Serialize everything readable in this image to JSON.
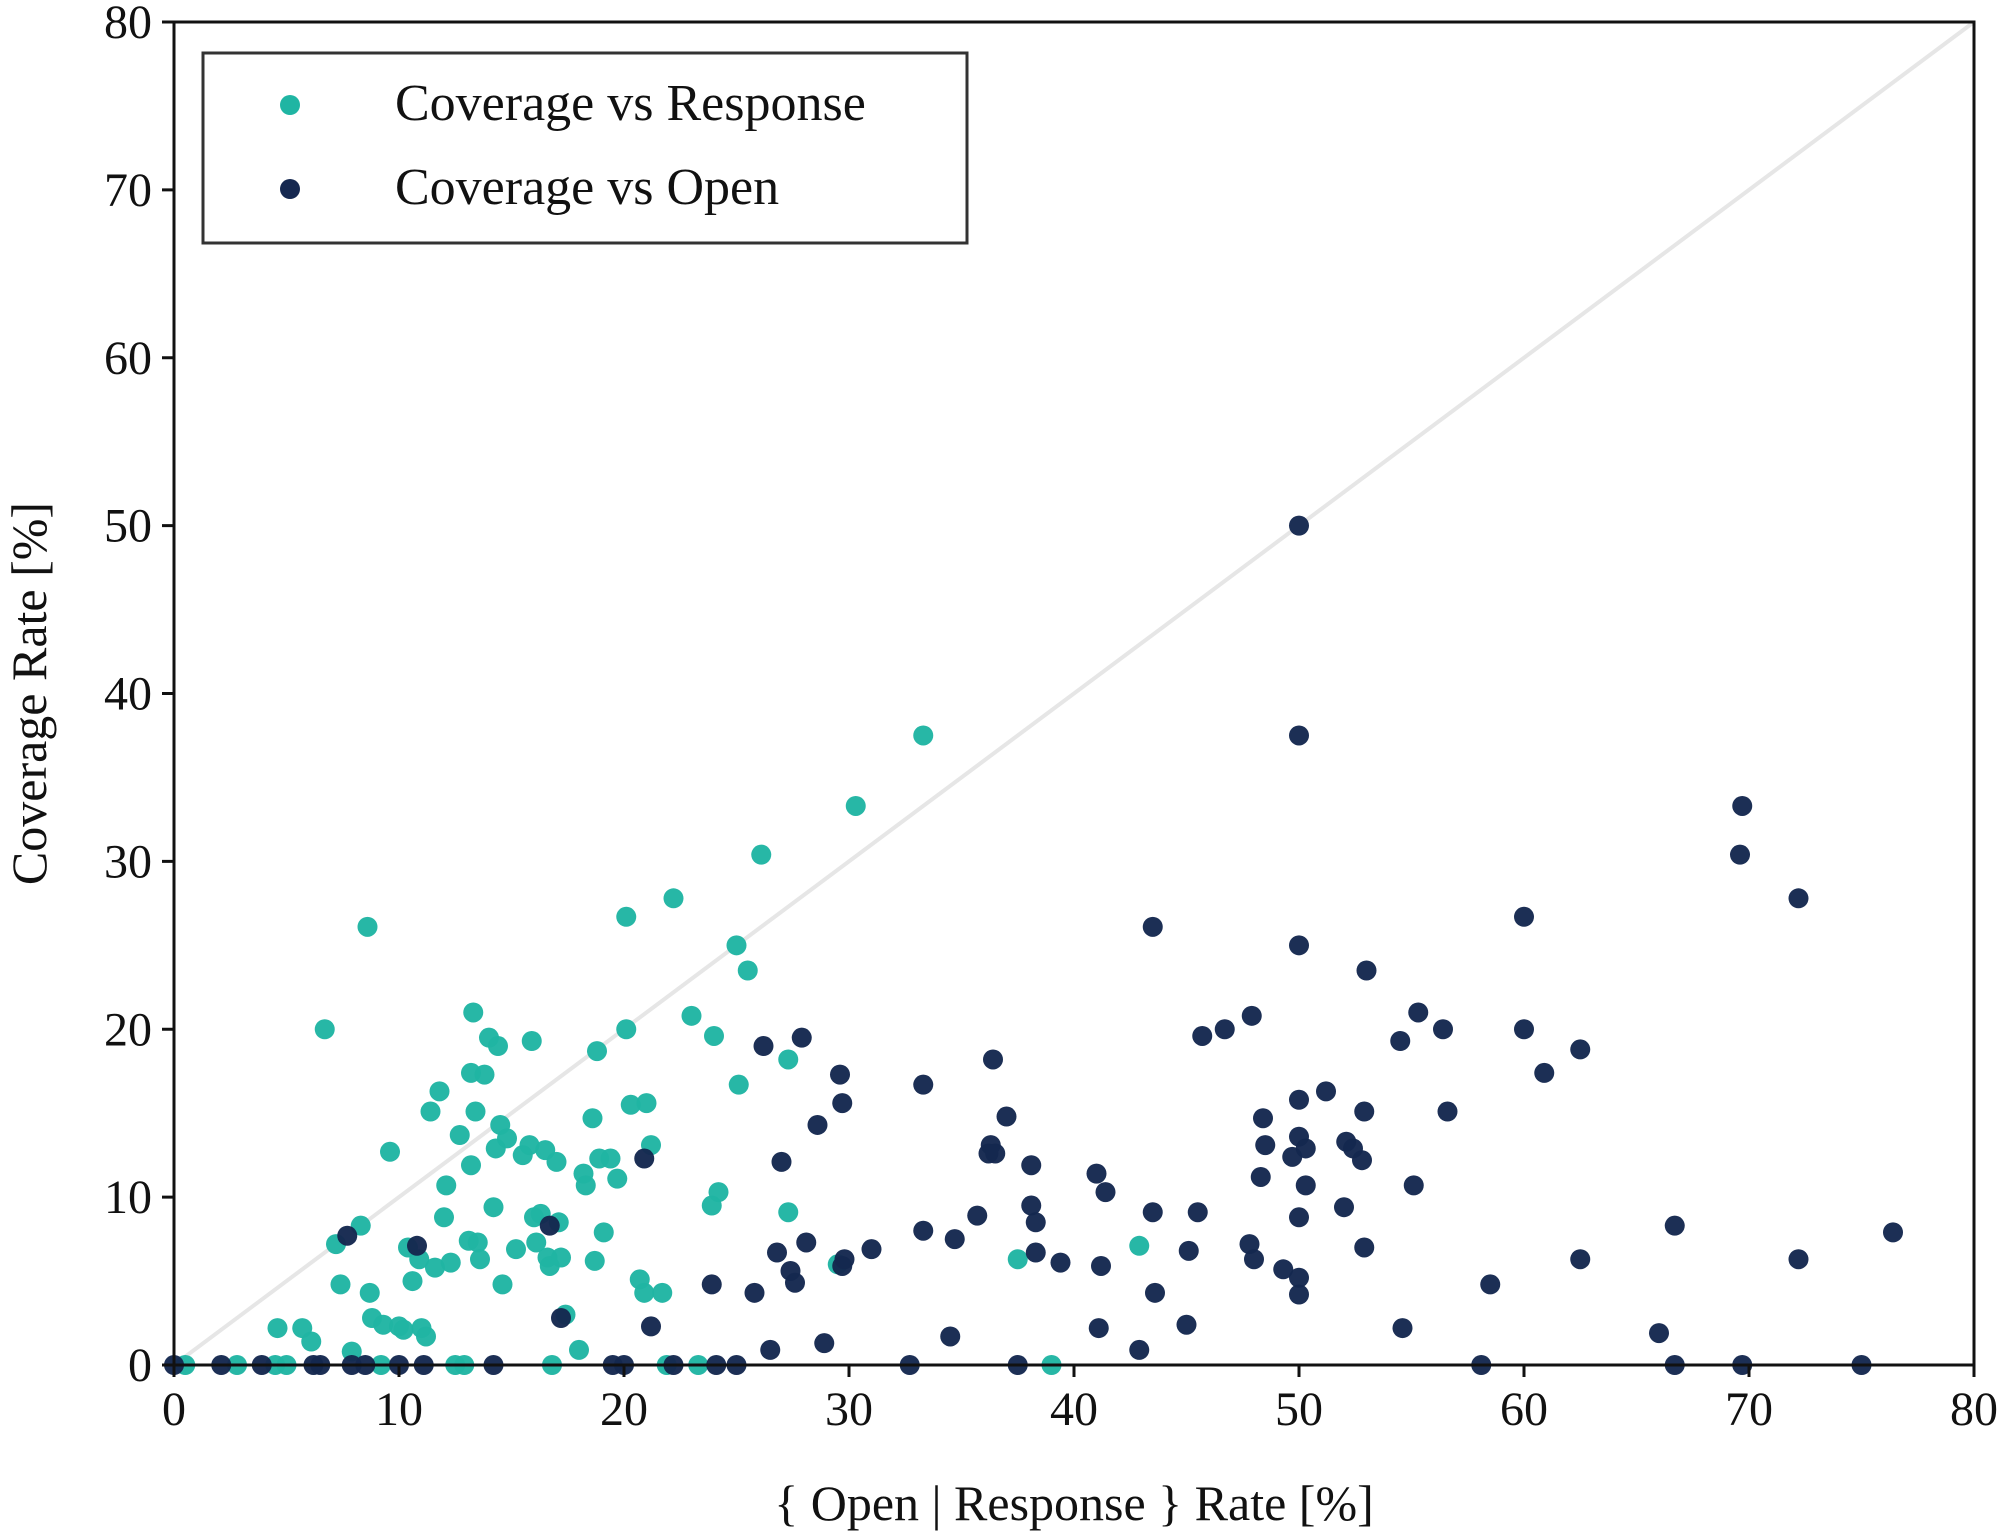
{
  "chart_data": {
    "type": "scatter",
    "title": "",
    "xlabel": "{ Open | Response } Rate [%]",
    "ylabel": "Coverage Rate [%]",
    "xlim": [
      0,
      80
    ],
    "ylim": [
      0,
      80
    ],
    "xticks": [
      "0",
      "10",
      "20",
      "30",
      "40",
      "50",
      "60",
      "70",
      "80"
    ],
    "yticks": [
      "0",
      "10",
      "20",
      "30",
      "40",
      "50",
      "60",
      "70",
      "80"
    ],
    "grid": false,
    "legend_position": "top-left",
    "reference_line": {
      "from": [
        0,
        0
      ],
      "to": [
        80,
        80
      ],
      "color": "#e6e6e6"
    },
    "series": [
      {
        "name": "Coverage vs Response",
        "color": "#20b5a3",
        "points": [
          [
            0.5,
            0
          ],
          [
            2.8,
            0
          ],
          [
            4.5,
            0
          ],
          [
            5.0,
            0
          ],
          [
            4.6,
            2.2
          ],
          [
            5.7,
            2.2
          ],
          [
            6.1,
            1.4
          ],
          [
            6.7,
            20.0
          ],
          [
            7.2,
            7.2
          ],
          [
            7.4,
            4.8
          ],
          [
            7.9,
            0.8
          ],
          [
            8.3,
            8.3
          ],
          [
            8.6,
            26.1
          ],
          [
            8.7,
            4.3
          ],
          [
            8.8,
            2.8
          ],
          [
            9.2,
            0
          ],
          [
            9.3,
            2.4
          ],
          [
            9.6,
            12.7
          ],
          [
            10.0,
            2.3
          ],
          [
            10.2,
            2.1
          ],
          [
            10.4,
            7.0
          ],
          [
            10.6,
            5.0
          ],
          [
            10.9,
            6.3
          ],
          [
            11.0,
            2.2
          ],
          [
            11.2,
            1.7
          ],
          [
            11.4,
            15.1
          ],
          [
            11.6,
            5.8
          ],
          [
            11.8,
            16.3
          ],
          [
            12.0,
            8.8
          ],
          [
            12.1,
            10.7
          ],
          [
            12.3,
            6.1
          ],
          [
            12.5,
            0
          ],
          [
            12.7,
            13.7
          ],
          [
            12.9,
            0
          ],
          [
            13.1,
            7.4
          ],
          [
            13.2,
            11.9
          ],
          [
            13.2,
            17.4
          ],
          [
            13.3,
            21.0
          ],
          [
            13.4,
            15.1
          ],
          [
            13.5,
            7.3
          ],
          [
            13.6,
            6.3
          ],
          [
            13.8,
            17.3
          ],
          [
            14.0,
            19.5
          ],
          [
            14.2,
            9.4
          ],
          [
            14.3,
            12.9
          ],
          [
            14.4,
            19.0
          ],
          [
            14.5,
            14.3
          ],
          [
            14.6,
            4.8
          ],
          [
            14.8,
            13.5
          ],
          [
            15.2,
            6.9
          ],
          [
            15.5,
            12.5
          ],
          [
            15.8,
            13.1
          ],
          [
            15.9,
            19.3
          ],
          [
            16.0,
            8.8
          ],
          [
            16.1,
            7.3
          ],
          [
            16.3,
            9.0
          ],
          [
            16.5,
            12.8
          ],
          [
            16.6,
            6.4
          ],
          [
            16.7,
            5.9
          ],
          [
            16.8,
            0
          ],
          [
            17.0,
            12.1
          ],
          [
            17.1,
            8.5
          ],
          [
            17.2,
            6.4
          ],
          [
            17.4,
            3.0
          ],
          [
            18.0,
            0.9
          ],
          [
            18.2,
            11.4
          ],
          [
            18.3,
            10.7
          ],
          [
            18.6,
            14.7
          ],
          [
            18.7,
            6.2
          ],
          [
            18.8,
            18.7
          ],
          [
            18.9,
            12.3
          ],
          [
            19.1,
            7.9
          ],
          [
            19.4,
            12.3
          ],
          [
            19.7,
            11.1
          ],
          [
            20.1,
            20.0
          ],
          [
            20.1,
            26.7
          ],
          [
            20.3,
            15.5
          ],
          [
            20.7,
            5.1
          ],
          [
            20.9,
            4.3
          ],
          [
            21.0,
            15.6
          ],
          [
            21.2,
            13.1
          ],
          [
            21.7,
            4.3
          ],
          [
            21.9,
            0
          ],
          [
            22.2,
            27.8
          ],
          [
            23.0,
            20.8
          ],
          [
            23.3,
            0
          ],
          [
            23.9,
            9.5
          ],
          [
            24.0,
            19.6
          ],
          [
            24.2,
            10.3
          ],
          [
            25.0,
            25.0
          ],
          [
            25.1,
            16.7
          ],
          [
            25.5,
            23.5
          ],
          [
            26.1,
            30.4
          ],
          [
            27.3,
            18.2
          ],
          [
            27.3,
            9.1
          ],
          [
            29.5,
            6.0
          ],
          [
            30.3,
            33.3
          ],
          [
            33.3,
            37.5
          ],
          [
            37.5,
            6.3
          ],
          [
            39.0,
            0
          ],
          [
            42.9,
            7.1
          ]
        ]
      },
      {
        "name": "Coverage vs Open",
        "color": "#152850",
        "points": [
          [
            0,
            0
          ],
          [
            2.1,
            0
          ],
          [
            3.9,
            0
          ],
          [
            6.2,
            0
          ],
          [
            6.5,
            0
          ],
          [
            7.7,
            7.7
          ],
          [
            7.9,
            0
          ],
          [
            8.5,
            0
          ],
          [
            10.0,
            0
          ],
          [
            10.8,
            7.1
          ],
          [
            11.1,
            0
          ],
          [
            14.2,
            0
          ],
          [
            16.7,
            8.3
          ],
          [
            17.2,
            2.8
          ],
          [
            19.5,
            0
          ],
          [
            20.0,
            0
          ],
          [
            20.9,
            12.3
          ],
          [
            21.2,
            2.3
          ],
          [
            22.2,
            0
          ],
          [
            23.9,
            4.8
          ],
          [
            24.1,
            0
          ],
          [
            25.0,
            0
          ],
          [
            25.8,
            4.3
          ],
          [
            26.2,
            19.0
          ],
          [
            26.5,
            0.9
          ],
          [
            26.8,
            6.7
          ],
          [
            27.0,
            12.1
          ],
          [
            27.4,
            5.6
          ],
          [
            27.6,
            4.9
          ],
          [
            27.9,
            19.5
          ],
          [
            28.1,
            7.3
          ],
          [
            28.6,
            14.3
          ],
          [
            28.9,
            1.3
          ],
          [
            29.6,
            17.3
          ],
          [
            29.7,
            15.6
          ],
          [
            29.7,
            5.9
          ],
          [
            29.8,
            6.3
          ],
          [
            31.0,
            6.9
          ],
          [
            32.7,
            0
          ],
          [
            33.3,
            16.7
          ],
          [
            33.3,
            8.0
          ],
          [
            34.5,
            1.7
          ],
          [
            34.7,
            7.5
          ],
          [
            35.7,
            8.9
          ],
          [
            36.2,
            12.6
          ],
          [
            36.3,
            13.1
          ],
          [
            36.4,
            18.2
          ],
          [
            36.5,
            12.6
          ],
          [
            37.0,
            14.8
          ],
          [
            37.5,
            0
          ],
          [
            38.1,
            11.9
          ],
          [
            38.1,
            9.5
          ],
          [
            38.3,
            8.5
          ],
          [
            38.3,
            6.7
          ],
          [
            39.4,
            6.1
          ],
          [
            41.0,
            11.4
          ],
          [
            41.1,
            2.2
          ],
          [
            41.2,
            5.9
          ],
          [
            41.4,
            10.3
          ],
          [
            42.9,
            0.9
          ],
          [
            43.5,
            26.1
          ],
          [
            43.5,
            9.1
          ],
          [
            43.6,
            4.3
          ],
          [
            45.0,
            2.4
          ],
          [
            45.1,
            6.8
          ],
          [
            45.5,
            9.1
          ],
          [
            45.7,
            19.6
          ],
          [
            46.7,
            20.0
          ],
          [
            47.8,
            7.2
          ],
          [
            47.9,
            20.8
          ],
          [
            48.0,
            6.3
          ],
          [
            48.3,
            11.2
          ],
          [
            48.4,
            14.7
          ],
          [
            48.5,
            13.1
          ],
          [
            49.3,
            5.7
          ],
          [
            49.7,
            12.4
          ],
          [
            50.0,
            50.0
          ],
          [
            50.0,
            37.5
          ],
          [
            50.0,
            25.0
          ],
          [
            50.0,
            15.8
          ],
          [
            50.0,
            13.6
          ],
          [
            50.0,
            8.8
          ],
          [
            50.0,
            5.2
          ],
          [
            50.0,
            4.2
          ],
          [
            50.3,
            10.7
          ],
          [
            50.3,
            12.9
          ],
          [
            51.2,
            16.3
          ],
          [
            52.0,
            9.4
          ],
          [
            52.1,
            13.3
          ],
          [
            52.4,
            12.9
          ],
          [
            52.8,
            12.2
          ],
          [
            52.9,
            7.0
          ],
          [
            52.9,
            15.1
          ],
          [
            53.0,
            23.5
          ],
          [
            54.5,
            19.3
          ],
          [
            54.6,
            2.2
          ],
          [
            55.1,
            10.7
          ],
          [
            55.3,
            21.0
          ],
          [
            56.4,
            20.0
          ],
          [
            56.6,
            15.1
          ],
          [
            58.1,
            0
          ],
          [
            58.5,
            4.8
          ],
          [
            60.0,
            20.0
          ],
          [
            60.0,
            26.7
          ],
          [
            60.9,
            17.4
          ],
          [
            62.5,
            18.8
          ],
          [
            62.5,
            6.3
          ],
          [
            66.0,
            1.9
          ],
          [
            66.7,
            8.3
          ],
          [
            66.7,
            0
          ],
          [
            69.6,
            30.4
          ],
          [
            69.7,
            33.3
          ],
          [
            69.7,
            0
          ],
          [
            72.2,
            27.8
          ],
          [
            72.2,
            6.3
          ],
          [
            75.0,
            0
          ],
          [
            76.4,
            7.9
          ]
        ]
      }
    ]
  }
}
